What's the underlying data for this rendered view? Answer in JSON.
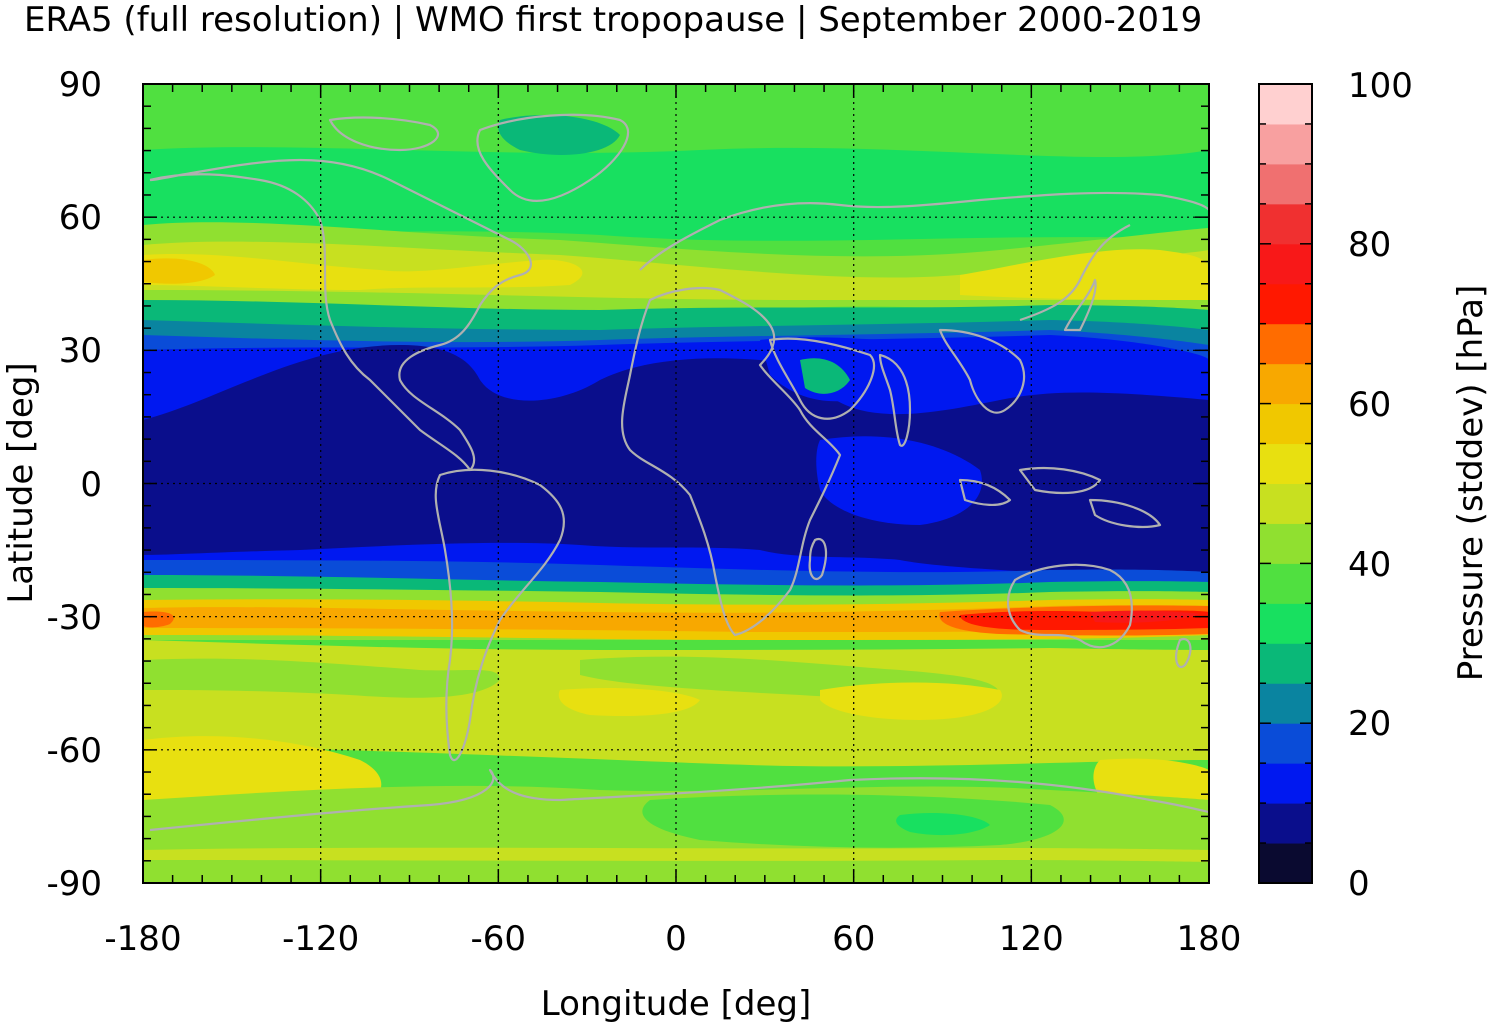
{
  "title": "ERA5 (full resolution) | WMO first tropopause | September 2000-2019",
  "map": {
    "x_label": "Longitude [deg]",
    "y_label": "Latitude [deg]",
    "x_ticks": [
      "-180",
      "-120",
      "-60",
      "0",
      "60",
      "120",
      "180"
    ],
    "y_ticks": [
      "90",
      "60",
      "30",
      "0",
      "-30",
      "-60",
      "-90"
    ],
    "x_range": [
      -180,
      180
    ],
    "y_range": [
      -90,
      90
    ],
    "grid": "dotted",
    "coastlines": "gray"
  },
  "colorbar": {
    "label": "Pressure (stddev) [hPa]",
    "ticks": [
      "0",
      "20",
      "40",
      "60",
      "80",
      "100"
    ],
    "range": [
      0,
      100
    ],
    "step": 5,
    "colors": [
      "#0a0a30",
      "#0a0e8c",
      "#0018f0",
      "#0a4cd8",
      "#0a84a0",
      "#0ab878",
      "#18e060",
      "#50e040",
      "#90e030",
      "#c8e020",
      "#e8e010",
      "#f0c800",
      "#f8a800",
      "#ff6c00",
      "#ff1800",
      "#f81818",
      "#f03030",
      "#f07070",
      "#f8a0a0",
      "#ffd0d0"
    ]
  }
}
